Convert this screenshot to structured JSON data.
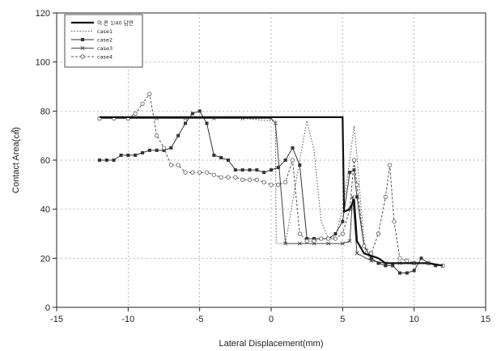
{
  "chart_data": {
    "type": "line",
    "title": "",
    "xlabel": "Lateral Displacement(mm)",
    "ylabel": "Contact Area(㎠)",
    "xlim": [
      -15,
      15
    ],
    "ylim": [
      0,
      120
    ],
    "xticks": [
      -15,
      -10,
      -5,
      0,
      5,
      10,
      15
    ],
    "yticks": [
      0,
      20,
      40,
      60,
      80,
      100,
      120
    ],
    "grid": true,
    "legend_position": "top-left",
    "series": [
      {
        "name": "이 론 1/40 답면",
        "style": "solid-thick",
        "x": [
          -12,
          -10,
          -8,
          -6,
          -4,
          -2,
          0,
          2,
          4,
          5,
          5.1,
          5.5,
          5.8,
          6,
          6.5,
          7,
          7.5,
          8,
          9,
          10,
          11,
          12
        ],
        "y": [
          77.5,
          77.5,
          77.5,
          77.5,
          77.5,
          77.5,
          77.5,
          77.5,
          77.5,
          77.5,
          39,
          40,
          44,
          27,
          22,
          21,
          20,
          18,
          18,
          18,
          18,
          17
        ]
      },
      {
        "name": "case1",
        "style": "dotted",
        "x": [
          -12,
          -10,
          -8,
          -6,
          -4,
          -2,
          0,
          0.3,
          0.35,
          1,
          2,
          2.5,
          3,
          3.5,
          4,
          4.5,
          5,
          5.5,
          5.8,
          6,
          6.3,
          6.6,
          7,
          7.5,
          8,
          8.5,
          9,
          10,
          11,
          12
        ],
        "y": [
          77,
          77,
          77,
          77,
          77,
          77,
          76,
          76,
          26,
          26,
          60,
          76,
          64,
          35,
          28,
          29,
          40,
          60,
          74,
          62,
          40,
          22,
          20,
          18,
          18,
          18,
          18,
          18,
          18,
          17
        ]
      },
      {
        "name": "case2",
        "style": "solid-square",
        "x": [
          -12,
          -11.5,
          -11,
          -10.5,
          -10,
          -9.5,
          -9,
          -8.5,
          -8,
          -7.5,
          -7,
          -6.5,
          -6,
          -5.5,
          -5,
          -4.5,
          -4,
          -3.5,
          -3,
          -2.5,
          -2,
          -1.5,
          -1,
          -0.5,
          0,
          0.5,
          1,
          1.5,
          2,
          2.5,
          3,
          3.5,
          4,
          4.5,
          5,
          5.5,
          5.8,
          6,
          6.5,
          7,
          7.5,
          8,
          8.5,
          9,
          9.5,
          10,
          10.5,
          11,
          11.5,
          12
        ],
        "y": [
          60,
          60,
          60,
          62,
          62,
          62,
          63,
          64,
          64,
          64,
          65,
          70,
          75,
          79,
          80,
          75,
          62,
          61,
          60,
          56,
          56,
          56,
          56,
          55,
          56,
          57,
          60,
          65,
          58,
          28,
          28,
          28,
          28,
          30,
          35,
          55,
          56,
          45,
          25,
          20,
          18,
          17,
          17,
          14,
          14,
          15,
          20,
          18,
          17,
          17
        ]
      },
      {
        "name": "case3",
        "style": "solid-cross",
        "x": [
          -12,
          -10,
          -8,
          -6,
          -4,
          -2,
          0,
          0.3,
          1,
          2,
          3,
          4,
          5,
          5.5,
          5.7,
          6,
          7,
          8,
          9,
          10,
          11,
          12
        ],
        "y": [
          77,
          77,
          77,
          77,
          77,
          77,
          77,
          75,
          26,
          26,
          26,
          26,
          26,
          27,
          45,
          22,
          19,
          18,
          18,
          18,
          18,
          17
        ]
      },
      {
        "name": "case4",
        "style": "dashed-circle",
        "x": [
          -12,
          -11,
          -10,
          -9.5,
          -9,
          -8.5,
          -8,
          -7.5,
          -7,
          -6.5,
          -6,
          -5.5,
          -5,
          -4.5,
          -4,
          -3.5,
          -3,
          -2.5,
          -2,
          -1.5,
          -1,
          -0.5,
          0,
          0.5,
          1,
          1.5,
          2,
          2.5,
          3,
          3.5,
          4,
          4.5,
          5,
          5.5,
          5.8,
          6,
          6.5,
          7,
          7.5,
          8,
          8.3,
          8.6,
          9,
          9.5,
          10,
          11,
          12
        ],
        "y": [
          77,
          77,
          77,
          79,
          83,
          87,
          70,
          65,
          58,
          58,
          55,
          55,
          55,
          55,
          54,
          53,
          53,
          53,
          52,
          52,
          52,
          51,
          50,
          50,
          51,
          60,
          30,
          27,
          27,
          28,
          28,
          28,
          30,
          40,
          60,
          50,
          25,
          22,
          30,
          45,
          58,
          35,
          20,
          19,
          18,
          18,
          17
        ]
      }
    ]
  }
}
